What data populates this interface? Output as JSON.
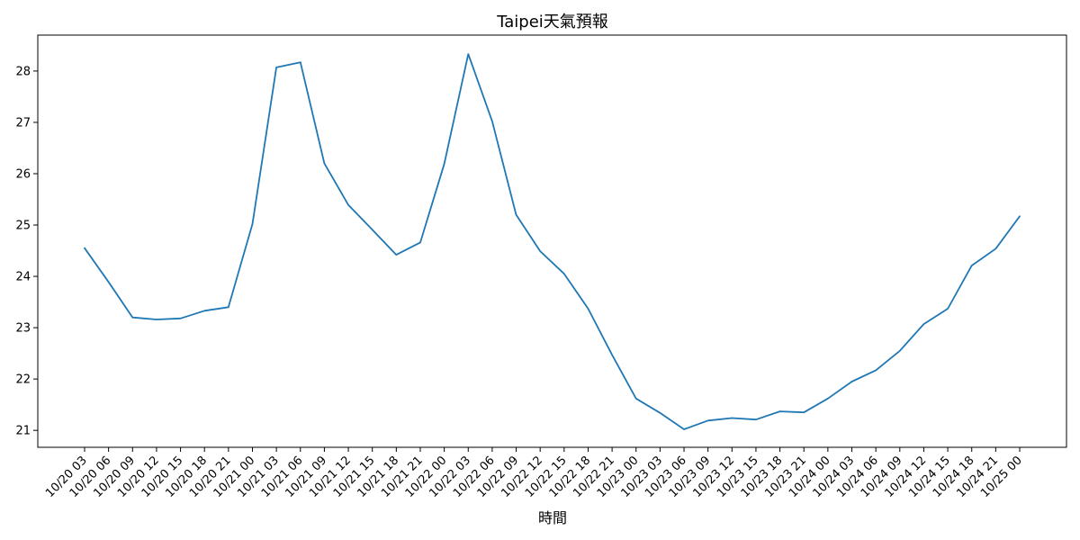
{
  "colors": {
    "series": "#1f77b4",
    "axis": "#000000",
    "background": "#ffffff"
  },
  "chart_data": {
    "type": "line",
    "title": "Taipei天氣預報",
    "xlabel": "時間",
    "ylabel": "",
    "ylim": [
      20.67,
      28.7
    ],
    "yticks": [
      21,
      22,
      23,
      24,
      25,
      26,
      27,
      28
    ],
    "grid": false,
    "legend": "none",
    "x": [
      "10/20 03",
      "10/20 06",
      "10/20 09",
      "10/20 12",
      "10/20 15",
      "10/20 18",
      "10/20 21",
      "10/21 00",
      "10/21 03",
      "10/21 06",
      "10/21 09",
      "10/21 12",
      "10/21 15",
      "10/21 18",
      "10/21 21",
      "10/22 00",
      "10/22 03",
      "10/22 06",
      "10/22 09",
      "10/22 12",
      "10/22 15",
      "10/22 18",
      "10/22 21",
      "10/23 00",
      "10/23 03",
      "10/23 06",
      "10/23 09",
      "10/23 12",
      "10/23 15",
      "10/23 18",
      "10/23 21",
      "10/24 00",
      "10/24 03",
      "10/24 06",
      "10/24 09",
      "10/24 12",
      "10/24 15",
      "10/24 18",
      "10/24 21",
      "10/25 00"
    ],
    "series": [
      {
        "values": [
          24.55,
          23.89,
          23.2,
          23.16,
          23.18,
          23.33,
          23.4,
          25.02,
          28.07,
          28.17,
          26.2,
          25.39,
          24.91,
          24.42,
          24.66,
          26.19,
          28.33,
          27.02,
          25.2,
          24.49,
          24.05,
          23.37,
          22.47,
          21.62,
          21.34,
          21.02,
          21.19,
          21.24,
          21.21,
          21.37,
          21.35,
          21.62,
          21.95,
          22.17,
          22.55,
          23.07,
          23.37,
          24.21,
          24.54,
          25.17
        ]
      }
    ]
  }
}
